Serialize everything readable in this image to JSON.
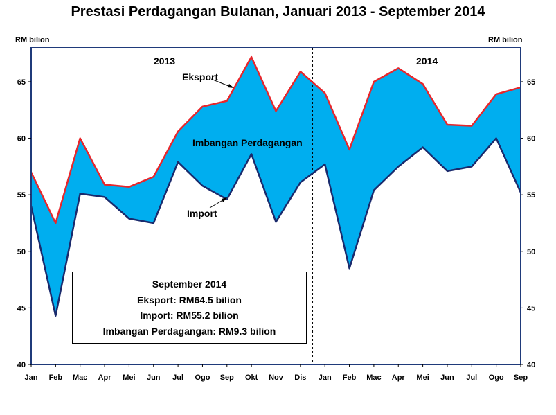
{
  "title": "Prestasi Perdagangan Bulanan, Januari 2013 - September 2014",
  "unit_left": "RM bilion",
  "unit_right": "RM bilion",
  "annotations": {
    "year1": "2013",
    "year2": "2014",
    "export": "Eksport",
    "import": "Import",
    "balance": "Imbangan Perdagangan"
  },
  "info_box": {
    "line1": "September 2014",
    "line2": "Eksport: RM64.5 bilion",
    "line3": "Import: RM55.2 bilion",
    "line4": "Imbangan Perdagangan: RM9.3 bilion"
  },
  "colors": {
    "export_line": "#e8262b",
    "import_line": "#1a2a6c",
    "fill": "#00aeef",
    "frame": "#1f3a7a"
  },
  "chart_data": {
    "type": "area",
    "categories": [
      "Jan",
      "Feb",
      "Mac",
      "Apr",
      "Mei",
      "Jun",
      "Jul",
      "Ogo",
      "Sep",
      "Okt",
      "Nov",
      "Dis",
      "Jan",
      "Feb",
      "Mac",
      "Apr",
      "Mei",
      "Jun",
      "Jul",
      "Ogo",
      "Sep"
    ],
    "series": [
      {
        "name": "Eksport",
        "values": [
          57.0,
          52.5,
          60.0,
          55.9,
          55.7,
          56.6,
          60.6,
          62.8,
          63.3,
          67.2,
          62.4,
          65.9,
          64.0,
          59.0,
          65.0,
          66.2,
          64.8,
          61.2,
          61.1,
          63.9,
          64.5
        ]
      },
      {
        "name": "Import",
        "values": [
          54.0,
          44.3,
          55.1,
          54.8,
          52.9,
          52.5,
          57.9,
          55.8,
          54.6,
          58.6,
          52.6,
          56.1,
          57.7,
          48.5,
          55.4,
          57.5,
          59.2,
          57.1,
          57.5,
          60.0,
          55.2
        ]
      }
    ],
    "ylim": [
      40,
      68
    ],
    "yticks": [
      40,
      45,
      50,
      55,
      60,
      65
    ],
    "year_divider_after_index": 11,
    "grid": false,
    "legend": "none"
  }
}
